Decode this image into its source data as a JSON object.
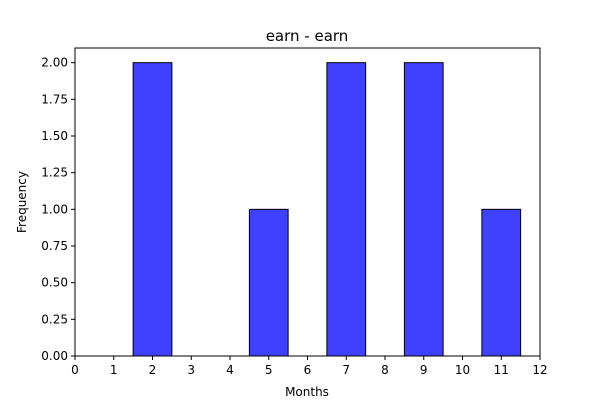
{
  "chart_data": {
    "type": "bar",
    "title": "earn - earn",
    "xlabel": "Months",
    "ylabel": "Frequency",
    "x": [
      2,
      5,
      7,
      9,
      11
    ],
    "values": [
      2,
      1,
      2,
      2,
      1
    ],
    "bar_width": 1,
    "xlim": [
      0,
      12
    ],
    "ylim": [
      0,
      2.1
    ],
    "xticks": [
      0,
      1,
      2,
      3,
      4,
      5,
      6,
      7,
      8,
      9,
      10,
      11,
      12
    ],
    "xtick_labels": [
      "0",
      "1",
      "2",
      "3",
      "4",
      "5",
      "6",
      "7",
      "8",
      "9",
      "10",
      "11",
      "12"
    ],
    "yticks": [
      0,
      0.25,
      0.5,
      0.75,
      1.0,
      1.25,
      1.5,
      1.75,
      2.0
    ],
    "ytick_labels": [
      "0.00",
      "0.25",
      "0.50",
      "0.75",
      "1.00",
      "1.25",
      "1.50",
      "1.75",
      "2.00"
    ],
    "grid": false,
    "bar_color": "#4040ff",
    "edge_color": "#000000"
  }
}
